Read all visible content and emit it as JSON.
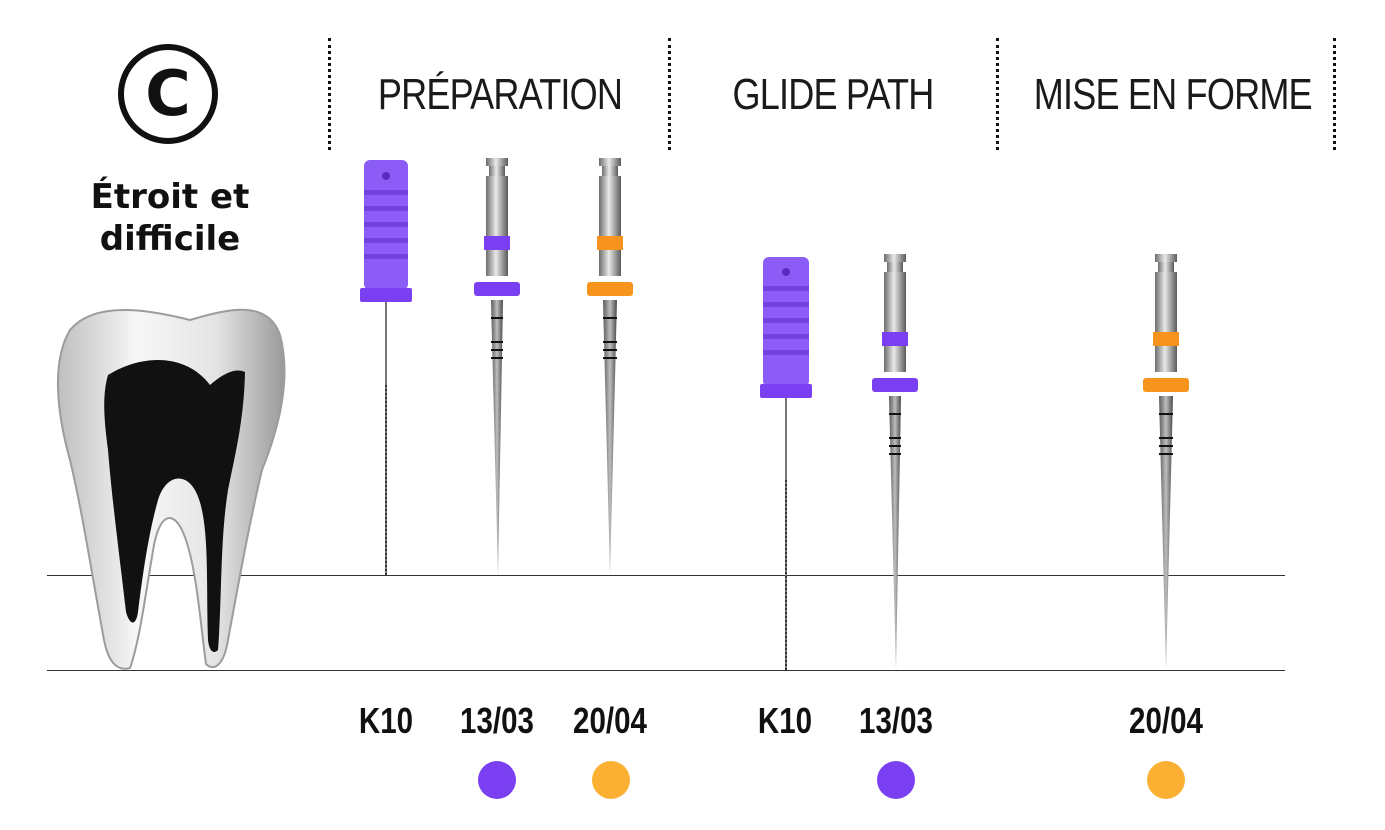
{
  "case": {
    "letter": "C",
    "label_line1": "Étroit et",
    "label_line2": "difficile"
  },
  "phases": [
    {
      "label": "PRÉPARATION"
    },
    {
      "label": "GLIDE PATH"
    },
    {
      "label": "MISE EN FORME"
    }
  ],
  "files": [
    {
      "label": "K10",
      "type": "hand-file",
      "color": "#8b5cf6",
      "dot": false
    },
    {
      "label": "13/03",
      "type": "rotary-file",
      "color": "#7b3ff2",
      "dot": true
    },
    {
      "label": "20/04",
      "type": "rotary-file",
      "color": "#f7941d",
      "dot": true
    },
    {
      "label": "K10",
      "type": "hand-file",
      "color": "#8b5cf6",
      "dot": false
    },
    {
      "label": "13/03",
      "type": "rotary-file",
      "color": "#7b3ff2",
      "dot": true
    },
    {
      "label": "20/04",
      "type": "rotary-file",
      "color": "#f7941d",
      "dot": true
    }
  ],
  "colors": {
    "purple": "#7b3ff2",
    "orange": "#fbb034",
    "ink": "#111111"
  },
  "icons": [
    "tooth-icon"
  ]
}
